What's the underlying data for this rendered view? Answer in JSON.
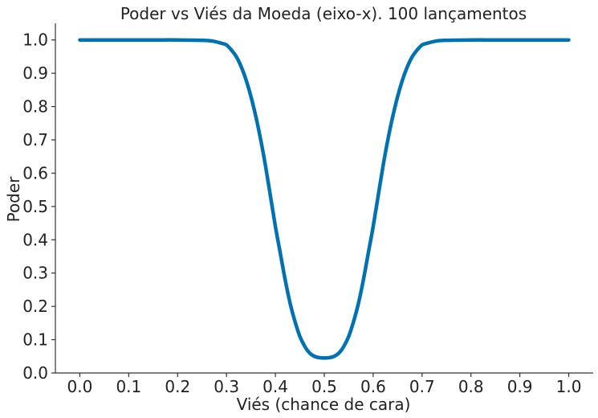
{
  "chart_data": {
    "type": "line",
    "title": "Poder vs Viés da Moeda (eixo-x). 100 lançamentos",
    "xlabel": "Viés (chance de cara)",
    "ylabel": "Poder",
    "xlim": [
      -0.05,
      1.05
    ],
    "ylim": [
      0.0,
      1.05
    ],
    "x_ticks": [
      "0.0",
      "0.1",
      "0.2",
      "0.3",
      "0.4",
      "0.5",
      "0.6",
      "0.7",
      "0.8",
      "0.9",
      "1.0"
    ],
    "y_ticks": [
      "0.0",
      "0.1",
      "0.2",
      "0.3",
      "0.4",
      "0.5",
      "0.6",
      "0.7",
      "0.8",
      "0.9",
      "1.0"
    ],
    "grid": false,
    "series": [
      {
        "color": "#0072B2",
        "x": [
          0.0,
          0.05,
          0.1,
          0.15,
          0.2,
          0.25,
          0.27,
          0.29,
          0.3,
          0.31,
          0.32,
          0.33,
          0.34,
          0.35,
          0.36,
          0.37,
          0.38,
          0.39,
          0.4,
          0.41,
          0.42,
          0.43,
          0.44,
          0.45,
          0.46,
          0.47,
          0.48,
          0.49,
          0.5,
          0.51,
          0.52,
          0.53,
          0.54,
          0.55,
          0.56,
          0.57,
          0.58,
          0.59,
          0.6,
          0.61,
          0.62,
          0.63,
          0.64,
          0.65,
          0.66,
          0.67,
          0.68,
          0.69,
          0.7,
          0.71,
          0.73,
          0.75,
          0.8,
          0.85,
          0.9,
          0.95,
          1.0
        ],
        "y": [
          1.0,
          1.0,
          1.0,
          1.0,
          1.0,
          0.999,
          0.997,
          0.99,
          0.985,
          0.97,
          0.95,
          0.92,
          0.88,
          0.83,
          0.77,
          0.7,
          0.62,
          0.53,
          0.44,
          0.36,
          0.28,
          0.21,
          0.155,
          0.11,
          0.08,
          0.06,
          0.05,
          0.046,
          0.045,
          0.046,
          0.05,
          0.06,
          0.08,
          0.11,
          0.155,
          0.21,
          0.28,
          0.36,
          0.44,
          0.53,
          0.62,
          0.7,
          0.77,
          0.83,
          0.88,
          0.92,
          0.95,
          0.97,
          0.985,
          0.99,
          0.997,
          0.999,
          1.0,
          1.0,
          1.0,
          1.0,
          1.0
        ]
      }
    ]
  }
}
